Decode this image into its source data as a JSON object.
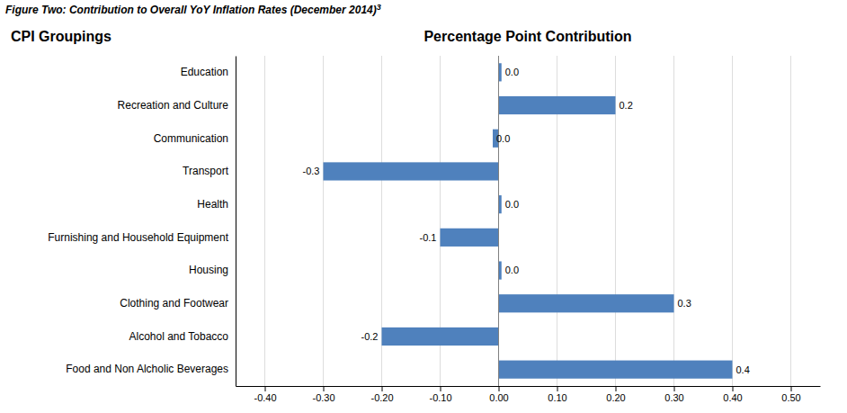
{
  "chart_data": {
    "type": "bar",
    "orientation": "horizontal",
    "title": "Figure Two: Contribution to Overall YoY Inflation Rates (December 2014)",
    "annotations": [
      "3"
    ],
    "xlabel": "Percentage Point Contribution",
    "ylabel": "CPI Groupings",
    "categories": [
      "Food and Non Alcholic Beverages",
      "Alcohol and Tobacco",
      "Clothing and Footwear",
      "Housing",
      "Furnishing and Household Equipment",
      "Health",
      "Transport",
      "Communication",
      "Recreation and Culture",
      "Education"
    ],
    "values": [
      0.4,
      -0.2,
      0.3,
      0.005,
      -0.1,
      0.005,
      -0.3,
      -0.01,
      0.2,
      0.005
    ],
    "value_labels": [
      "0.4",
      "-0.2",
      "0.3",
      "0.0",
      "-0.1",
      "0.0",
      "-0.3",
      "0.0",
      "0.2",
      "0.0"
    ],
    "data_labels": true,
    "color": "#4F81BD",
    "xlim": [
      -0.45,
      0.55
    ],
    "xticks": [
      {
        "value": -0.4,
        "label": "-0.40"
      },
      {
        "value": -0.3,
        "label": "-0.30"
      },
      {
        "value": -0.2,
        "label": "-0.20"
      },
      {
        "value": -0.1,
        "label": "-0.10"
      },
      {
        "value": 0.0,
        "label": "0.00"
      },
      {
        "value": 0.1,
        "label": "0.10"
      },
      {
        "value": 0.2,
        "label": "0.20"
      },
      {
        "value": 0.3,
        "label": "0.30"
      },
      {
        "value": 0.4,
        "label": "0.40"
      },
      {
        "value": 0.5,
        "label": "0.50"
      }
    ],
    "grid": true
  }
}
